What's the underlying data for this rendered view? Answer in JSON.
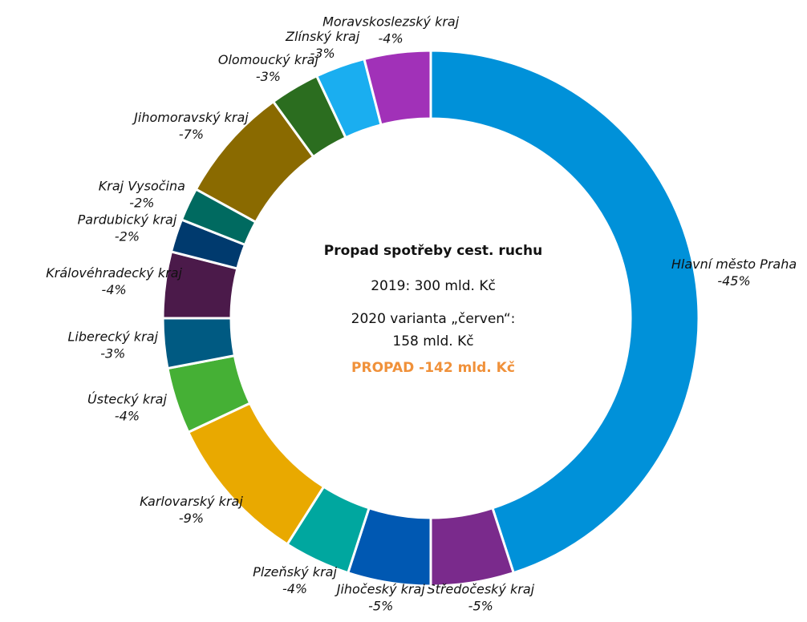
{
  "chart_data": {
    "type": "donut",
    "categories": [
      "Hlavní město Praha",
      "Středočeský kraj",
      "Jihočeský kraj",
      "Plzeňský kraj",
      "Karlovarský kraj",
      "Ústecký kraj",
      "Liberecký kraj",
      "Královéhradecký kraj",
      "Pardubický kraj",
      "Kraj Vysočina",
      "Jihomoravský kraj",
      "Olomoucký kraj",
      "Zlínský kraj",
      "Moravskoslezský kraj"
    ],
    "values": [
      -45,
      -5,
      -5,
      -4,
      -9,
      -4,
      -3,
      -4,
      -2,
      -2,
      -7,
      -3,
      -3,
      -4
    ],
    "value_labels": [
      "-45%",
      "-5%",
      "-5%",
      "-4%",
      "-9%",
      "-4%",
      "-3%",
      "-4%",
      "-2%",
      "-2%",
      "-7%",
      "-3%",
      "-3%",
      "-4%"
    ],
    "colors": [
      "#0091d9",
      "#7a2a8c",
      "#0058b2",
      "#00a79f",
      "#e9a900",
      "#45b035",
      "#005a82",
      "#4b1a4a",
      "#003a6e",
      "#006a60",
      "#8a6a00",
      "#2b6d1f",
      "#1aaef0",
      "#a131b8"
    ],
    "center_title": "Propad spotřeby cest. ruchu",
    "center_lines": [
      "2019: 300 mld. Kč",
      "2020 varianta „červen“:",
      "158 mld. Kč"
    ],
    "center_highlight": "PROPAD  -142 mld. Kč"
  }
}
